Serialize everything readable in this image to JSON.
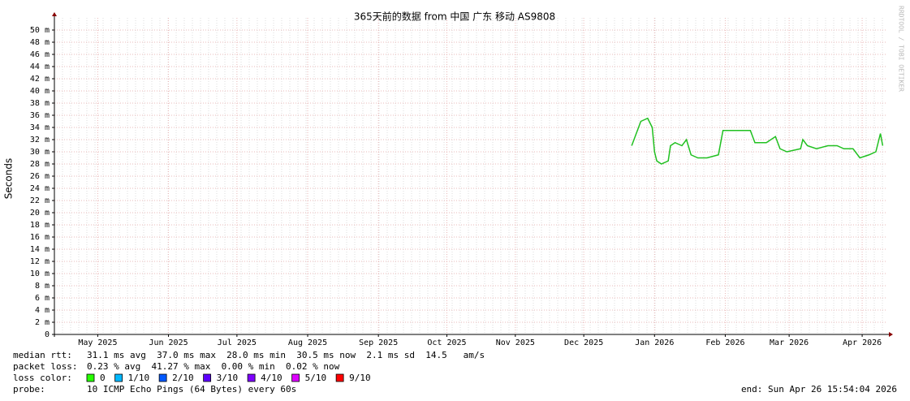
{
  "chart_data": {
    "type": "line",
    "title": "365天前的数据 from  中国 广东 移动 AS9808",
    "y_label": "Seconds",
    "watermark": "RRDTOOL / TOBI OETIKER",
    "xlim": [
      0,
      365
    ],
    "xticks": [
      {
        "value": 19,
        "label": "May 2025"
      },
      {
        "value": 50,
        "label": "Jun 2025"
      },
      {
        "value": 80,
        "label": "Jul 2025"
      },
      {
        "value": 111,
        "label": "Aug 2025"
      },
      {
        "value": 142,
        "label": "Sep 2025"
      },
      {
        "value": 172,
        "label": "Oct 2025"
      },
      {
        "value": 202,
        "label": "Nov 2025"
      },
      {
        "value": 232,
        "label": "Dec 2025"
      },
      {
        "value": 263,
        "label": "Jan 2026"
      },
      {
        "value": 294,
        "label": "Feb 2026"
      },
      {
        "value": 322,
        "label": "Mar 2026"
      },
      {
        "value": 354,
        "label": "Apr 2026"
      }
    ],
    "ylim": [
      0,
      0.052
    ],
    "yticks": [
      0,
      {
        "value": 0.002,
        "label": "2 m"
      },
      {
        "value": 0.004,
        "label": "4 m"
      },
      {
        "value": 0.006,
        "label": "6 m"
      },
      {
        "value": 0.008,
        "label": "8 m"
      },
      {
        "value": 0.01,
        "label": "10 m"
      },
      {
        "value": 0.012,
        "label": "12 m"
      },
      {
        "value": 0.014,
        "label": "14 m"
      },
      {
        "value": 0.016,
        "label": "16 m"
      },
      {
        "value": 0.018,
        "label": "18 m"
      },
      {
        "value": 0.02,
        "label": "20 m"
      },
      {
        "value": 0.022,
        "label": "22 m"
      },
      {
        "value": 0.024,
        "label": "24 m"
      },
      {
        "value": 0.026,
        "label": "26 m"
      },
      {
        "value": 0.028,
        "label": "28 m"
      },
      {
        "value": 0.03,
        "label": "30 m"
      },
      {
        "value": 0.032,
        "label": "32 m"
      },
      {
        "value": 0.034,
        "label": "34 m"
      },
      {
        "value": 0.036,
        "label": "36 m"
      },
      {
        "value": 0.038,
        "label": "38 m"
      },
      {
        "value": 0.04,
        "label": "40 m"
      },
      {
        "value": 0.042,
        "label": "42 m"
      },
      {
        "value": 0.044,
        "label": "44 m"
      },
      {
        "value": 0.046,
        "label": "46 m"
      },
      {
        "value": 0.048,
        "label": "48 m"
      },
      {
        "value": 0.05,
        "label": "50 m"
      }
    ],
    "grid": true,
    "series": [
      {
        "name": "median rtt",
        "color": "#20c020",
        "x": [
          253,
          255,
          257,
          260,
          262,
          263,
          264,
          266,
          269,
          270,
          272,
          275,
          277,
          279,
          282,
          286,
          291,
          293,
          296,
          300,
          305,
          307,
          312,
          316,
          318,
          321,
          327,
          328,
          330,
          334,
          339,
          343,
          346,
          350,
          353,
          357,
          360,
          362,
          363
        ],
        "values": [
          0.031,
          0.033,
          0.035,
          0.0355,
          0.034,
          0.03,
          0.0285,
          0.028,
          0.0285,
          0.031,
          0.0315,
          0.031,
          0.032,
          0.0295,
          0.029,
          0.029,
          0.0295,
          0.0335,
          0.0335,
          0.0335,
          0.0335,
          0.0315,
          0.0315,
          0.0325,
          0.0305,
          0.03,
          0.0305,
          0.032,
          0.031,
          0.0305,
          0.031,
          0.031,
          0.0305,
          0.0305,
          0.029,
          0.0295,
          0.03,
          0.033,
          0.031
        ]
      }
    ],
    "stats": {
      "median_label": "median rtt:",
      "median_text": "31.1 ms avg  37.0 ms max  28.0 ms min  30.5 ms now  2.1 ms sd  14.5   am/s",
      "loss_label": "packet loss:",
      "loss_text": "0.23 % avg  41.27 % max  0.00 % min  0.02 % now",
      "color_label": "loss color:",
      "loss_colors": [
        {
          "name": "0",
          "color": "#26ff00"
        },
        {
          "name": "1/10",
          "color": "#00b8ff"
        },
        {
          "name": "2/10",
          "color": "#0059ff"
        },
        {
          "name": "3/10",
          "color": "#5e00ff"
        },
        {
          "name": "4/10",
          "color": "#7e00ff"
        },
        {
          "name": "5/10",
          "color": "#dd00ff"
        },
        {
          "name": "9/10",
          "color": "#ff0000"
        }
      ],
      "probe_label": "probe:",
      "probe_text": "10 ICMP Echo Pings (64 Bytes) every 60s",
      "end_text": "end: Sun Apr 26 15:54:04 2026"
    }
  }
}
